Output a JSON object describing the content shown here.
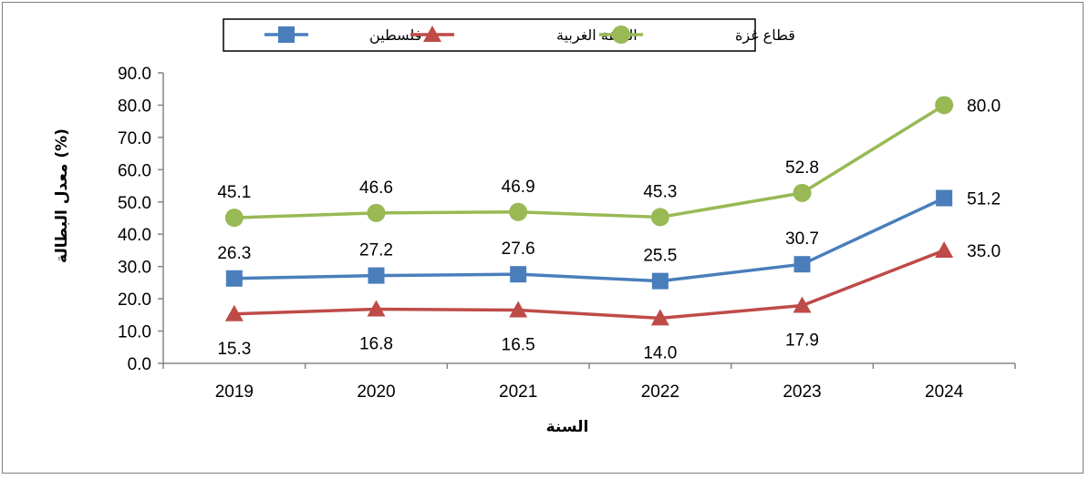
{
  "chart_data": {
    "type": "line",
    "title": "",
    "xlabel": "السنة",
    "ylabel": "معدل البطالة (%)",
    "categories": [
      "2019",
      "2020",
      "2021",
      "2022",
      "2023",
      "2024"
    ],
    "ylim": [
      0,
      90
    ],
    "yticks": [
      "0.0",
      "10.0",
      "20.0",
      "30.0",
      "40.0",
      "50.0",
      "60.0",
      "70.0",
      "80.0",
      "90.0"
    ],
    "grid": false,
    "legend": "top",
    "series": [
      {
        "name": "فلسطين",
        "color": "#4a7ebb",
        "marker": "square",
        "values": [
          26.3,
          27.2,
          27.6,
          25.5,
          30.7,
          51.2
        ],
        "labels": [
          "26.3",
          "27.2",
          "27.6",
          "25.5",
          "30.7",
          "51.2"
        ]
      },
      {
        "name": "الضفة الغربية",
        "color": "#be4b48",
        "marker": "triangle",
        "values": [
          15.3,
          16.8,
          16.5,
          14.0,
          17.9,
          35.0
        ],
        "labels": [
          "15.3",
          "16.8",
          "16.5",
          "14.0",
          "17.9",
          "35.0"
        ]
      },
      {
        "name": "قطاع غزة",
        "color": "#98b954",
        "marker": "circle",
        "values": [
          45.1,
          46.6,
          46.9,
          45.3,
          52.8,
          80.0
        ],
        "labels": [
          "45.1",
          "46.6",
          "46.9",
          "45.3",
          "52.8",
          "80.0"
        ]
      }
    ]
  }
}
